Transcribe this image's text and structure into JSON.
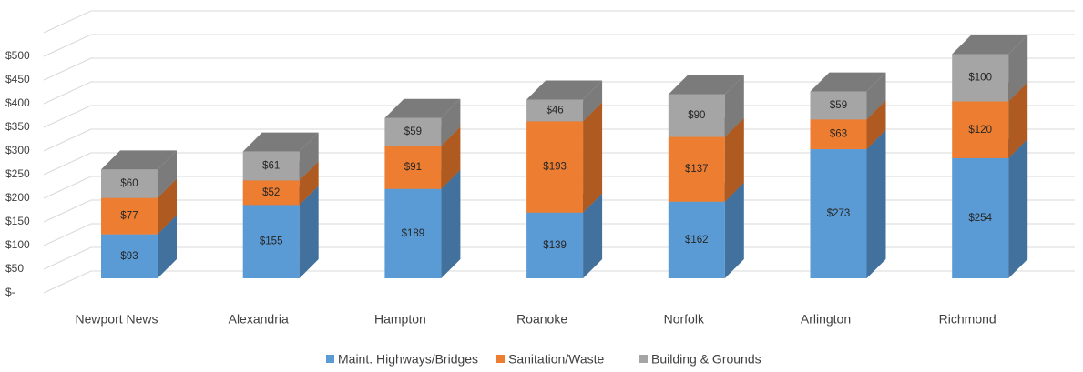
{
  "chart_data": {
    "type": "bar3d_stacked",
    "categories": [
      "Newport News",
      "Alexandria",
      "Hampton",
      "Roanoke",
      "Norfolk",
      "Arlington",
      "Richmond"
    ],
    "series": [
      {
        "name": "Maint. Highways/Bridges",
        "color": "#5b9bd5",
        "side_color": "#41719c",
        "values": [
          93,
          155,
          189,
          139,
          162,
          273,
          254
        ],
        "value_labels": [
          "$93",
          "$155",
          "$189",
          "$139",
          "$162",
          "$273",
          "$254"
        ]
      },
      {
        "name": "Sanitation/Waste",
        "color": "#ed7d31",
        "side_color": "#ae5a21",
        "values": [
          77,
          52,
          91,
          193,
          137,
          63,
          120
        ],
        "value_labels": [
          "$77",
          "$52",
          "$91",
          "$193",
          "$137",
          "$63",
          "$120"
        ]
      },
      {
        "name": "Building & Grounds",
        "color": "#a5a5a5",
        "side_color": "#7b7b7b",
        "values": [
          60,
          61,
          59,
          46,
          90,
          59,
          100
        ],
        "value_labels": [
          "$60",
          "$61",
          "$59",
          "$46",
          "$90",
          "$59",
          "$100"
        ]
      }
    ],
    "ylim": [
      0,
      550
    ],
    "yticks": [
      {
        "value": 0,
        "label": "$-"
      },
      {
        "value": 50,
        "label": "$50"
      },
      {
        "value": 100,
        "label": "$100"
      },
      {
        "value": 150,
        "label": "$150"
      },
      {
        "value": 200,
        "label": "$200"
      },
      {
        "value": 250,
        "label": "$250"
      },
      {
        "value": 300,
        "label": "$300"
      },
      {
        "value": 350,
        "label": "$350"
      },
      {
        "value": 400,
        "label": "$400"
      },
      {
        "value": 450,
        "label": "$450"
      },
      {
        "value": 500,
        "label": "$500"
      }
    ],
    "grid": true,
    "legend": "bottom"
  }
}
